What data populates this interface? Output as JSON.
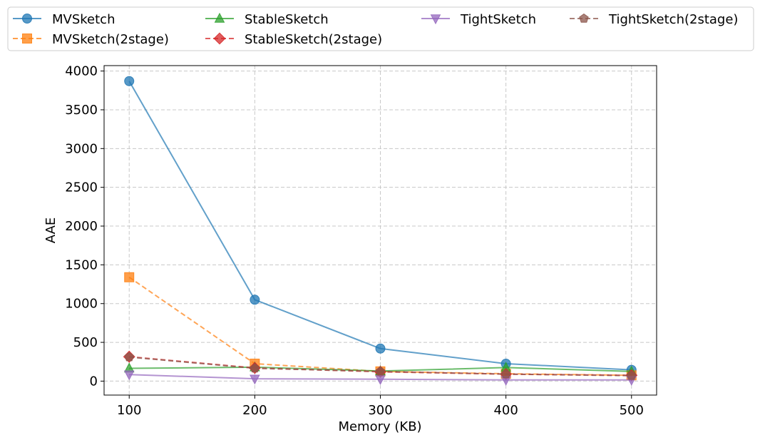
{
  "chart_data": {
    "type": "line",
    "x": [
      100,
      200,
      300,
      400,
      500
    ],
    "xlabel": "Memory (KB)",
    "ylabel": "AAE",
    "xlim": [
      80,
      520
    ],
    "ylim": [
      -180,
      4070
    ],
    "xticks": [
      100,
      200,
      300,
      400,
      500
    ],
    "yticks": [
      0,
      500,
      1000,
      1500,
      2000,
      2500,
      3000,
      3500,
      4000
    ],
    "grid": true,
    "legend_placement": "top, above plot, 4 columns",
    "series": [
      {
        "name": "MVSketch",
        "values": [
          3870,
          1050,
          420,
          225,
          145
        ],
        "color": "#1f77b4",
        "marker": "circle",
        "dash": "solid"
      },
      {
        "name": "MVSketch(2stage)",
        "values": [
          1340,
          225,
          125,
          95,
          75
        ],
        "color": "#ff7f0e",
        "marker": "square",
        "dash": "dashed"
      },
      {
        "name": "StableSketch",
        "values": [
          165,
          180,
          130,
          175,
          125
        ],
        "color": "#2ca02c",
        "marker": "triangle-up",
        "dash": "solid"
      },
      {
        "name": "StableSketch(2stage)",
        "values": [
          315,
          170,
          120,
          90,
          75
        ],
        "color": "#d62728",
        "marker": "diamond",
        "dash": "dashed"
      },
      {
        "name": "TightSketch",
        "values": [
          85,
          30,
          25,
          15,
          15
        ],
        "color": "#9467bd",
        "marker": "triangle-down",
        "dash": "solid"
      },
      {
        "name": "TightSketch(2stage)",
        "values": [
          310,
          165,
          125,
          90,
          70
        ],
        "color": "#8c564b",
        "marker": "pentagon",
        "dash": "dashed"
      }
    ]
  }
}
